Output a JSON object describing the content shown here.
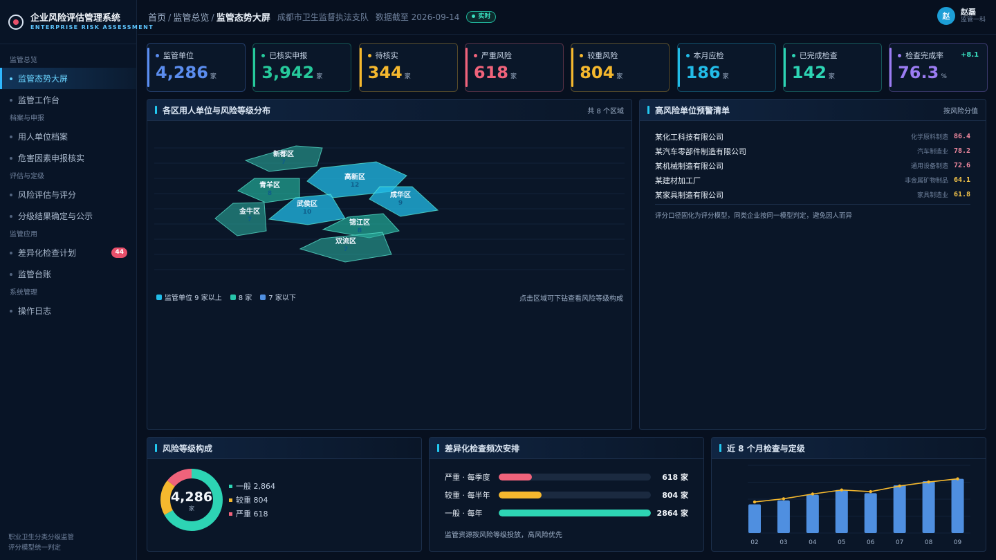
{
  "app": {
    "title": "企业风险评估管理系统",
    "subtitle": "ENTERPRISE RISK ASSESSMENT"
  },
  "sidebar": {
    "groups": [
      {
        "label": "监管总览",
        "items": [
          {
            "label": "监管态势大屏",
            "active": true
          },
          {
            "label": "监管工作台"
          }
        ]
      },
      {
        "label": "档案与申报",
        "items": [
          {
            "label": "用人单位档案"
          },
          {
            "label": "危害因素申报核实"
          }
        ]
      },
      {
        "label": "评估与定级",
        "items": [
          {
            "label": "风险评估与评分"
          },
          {
            "label": "分级结果确定与公示"
          }
        ]
      },
      {
        "label": "监管应用",
        "items": [
          {
            "label": "差异化检查计划",
            "badge": "44"
          },
          {
            "label": "监管台账"
          }
        ]
      },
      {
        "label": "系统管理",
        "items": [
          {
            "label": "操作日志"
          }
        ]
      }
    ],
    "footer_line1": "职业卫生分类分级监管",
    "footer_line2": "评分模型统一判定"
  },
  "header": {
    "crumb1": "首页",
    "crumb2": "监管总览",
    "crumb3": "监管态势大屏",
    "org": "成都市卫生监督执法支队",
    "data_date": "数据截至 2026-09-14",
    "live": "实时"
  },
  "user": {
    "avatar": "赵",
    "name": "赵磊",
    "role": "监管一科"
  },
  "kpis": [
    {
      "label": "监管单位",
      "value": "4,286",
      "unit": "家",
      "color": "#5b8def"
    },
    {
      "label": "已核实申报",
      "value": "3,942",
      "unit": "家",
      "color": "#26c99b"
    },
    {
      "label": "待核实",
      "value": "344",
      "unit": "家",
      "color": "#f5b82e"
    },
    {
      "label": "严重风险",
      "value": "618",
      "unit": "家",
      "color": "#f0637b"
    },
    {
      "label": "较重风险",
      "value": "804",
      "unit": "家",
      "color": "#f5b82e"
    },
    {
      "label": "本月应检",
      "value": "186",
      "unit": "家",
      "color": "#22bce8"
    },
    {
      "label": "已完成检查",
      "value": "142",
      "unit": "家",
      "color": "#2dd4b4"
    },
    {
      "label": "检查完成率",
      "value": "76.3",
      "unit": "%",
      "color": "#9b7cf2",
      "delta": "+8.1"
    }
  ],
  "map_panel": {
    "title": "各区用人单位与风险等级分布",
    "right": "共 8 个区域",
    "regions": [
      {
        "name": "新都区",
        "count": 7
      },
      {
        "name": "青羊区",
        "count": 8
      },
      {
        "name": "高新区",
        "count": 12
      },
      {
        "name": "成华区",
        "count": 9
      },
      {
        "name": "金牛区",
        "count": 7
      },
      {
        "name": "武侯区",
        "count": 10
      },
      {
        "name": "锦江区",
        "count": 8
      },
      {
        "name": "双流区",
        "count": 7
      }
    ],
    "legend": [
      "监管单位 9 家以上",
      "8 家",
      "7 家以下"
    ],
    "hint": "点击区域可下钻查看风险等级构成"
  },
  "risk_panel": {
    "title": "高风险单位预警清单",
    "right": "按风险分值",
    "rows": [
      {
        "name": "某化工科技有限公司",
        "industry": "化学原料制造",
        "score": "86.4",
        "color": "#f28aa0"
      },
      {
        "name": "某汽车零部件制造有限公司",
        "industry": "汽车制造业",
        "score": "78.2",
        "color": "#f28aa0"
      },
      {
        "name": "某机械制造有限公司",
        "industry": "通用设备制造",
        "score": "72.6",
        "color": "#f28aa0"
      },
      {
        "name": "某建材加工厂",
        "industry": "非金属矿物制品",
        "score": "64.1",
        "color": "#f5c54a"
      },
      {
        "name": "某家具制造有限公司",
        "industry": "家具制造业",
        "score": "61.8",
        "color": "#f5c54a"
      }
    ],
    "note": "评分口径固化为评分模型，同类企业按同一模型判定，避免因人而异"
  },
  "donut_panel": {
    "title": "风险等级构成",
    "total": "4,286",
    "unit": "家",
    "segments": [
      {
        "label": "一般 2,864",
        "value": 2864,
        "color": "#2dd4b4"
      },
      {
        "label": "较重 804",
        "value": 804,
        "color": "#f5b82e"
      },
      {
        "label": "严重 618",
        "value": 618,
        "color": "#f0637b"
      }
    ]
  },
  "freq_panel": {
    "title": "差异化检查频次安排",
    "rows": [
      {
        "label": "严重 · 每季度",
        "value": "618 家",
        "ratio": 0.216,
        "color": "#f0637b"
      },
      {
        "label": "较重 · 每半年",
        "value": "804 家",
        "ratio": 0.281,
        "color": "#f5b82e"
      },
      {
        "label": "一般 · 每年",
        "value": "2864 家",
        "ratio": 1.0,
        "color": "#2dd4b4"
      }
    ],
    "note": "监管资源按风险等级投放，高风险优先"
  },
  "trend_panel": {
    "title": "近 8 个月检查与定级"
  },
  "chart_data": {
    "type": "bar",
    "categories": [
      "02",
      "03",
      "04",
      "05",
      "06",
      "07",
      "08",
      "09"
    ],
    "series": [
      {
        "type": "bar",
        "values": [
          36,
          41,
          48,
          54,
          50,
          60,
          65,
          68
        ],
        "color": "#4f8fe0"
      },
      {
        "type": "line",
        "values": [
          39,
          43,
          49,
          54,
          52,
          59,
          64,
          68
        ],
        "color": "#f5b82e"
      }
    ],
    "ylim": [
      0,
      85
    ],
    "grid": true
  }
}
